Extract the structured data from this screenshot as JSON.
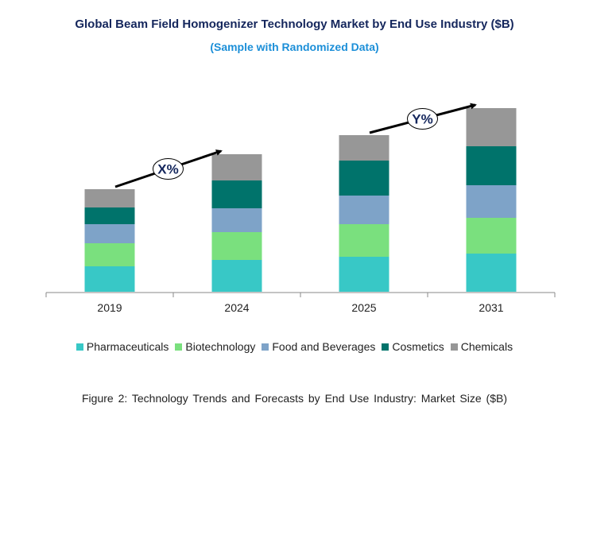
{
  "chart_data": {
    "type": "bar",
    "stacked": true,
    "title": "Global Beam Field Homogenizer Technology Market by End Use Industry ($B)",
    "subtitle": "(Sample with Randomized Data)",
    "categories": [
      "2019",
      "2024",
      "2025",
      "2031"
    ],
    "series": [
      {
        "name": "Pharmaceuticals",
        "color": "#38c8c6",
        "values": [
          3.2,
          4.0,
          4.4,
          4.8
        ]
      },
      {
        "name": "Biotechnology",
        "color": "#7ae07e",
        "values": [
          2.9,
          3.5,
          4.1,
          4.5
        ]
      },
      {
        "name": "Food and Beverages",
        "color": "#7ea3c8",
        "values": [
          2.4,
          3.0,
          3.6,
          4.1
        ]
      },
      {
        "name": "Cosmetics",
        "color": "#00736b",
        "values": [
          2.1,
          3.5,
          4.4,
          4.9
        ]
      },
      {
        "name": "Chemicals",
        "color": "#979797",
        "values": [
          2.3,
          3.3,
          3.2,
          4.8
        ]
      }
    ],
    "annotations": [
      {
        "label": "X%",
        "from": "2019",
        "to": "2024"
      },
      {
        "label": "Y%",
        "from": "2025",
        "to": "2031"
      }
    ],
    "xlabel": "",
    "ylabel": "",
    "ylim": [
      0,
      25
    ],
    "grid": false,
    "legend_position": "bottom",
    "caption": "Figure 2: Technology  Trends  and Forecasts by End Use Industry:  Market Size ($B)"
  }
}
